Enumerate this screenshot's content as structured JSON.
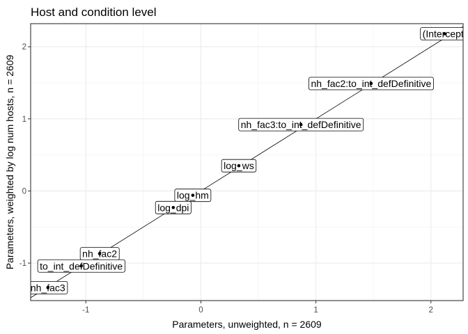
{
  "chart_data": {
    "type": "scatter",
    "title": "Host and condition level",
    "xlabel": "Parameters, unweighted, n =  2609",
    "ylabel": "Parameters, weighted by log num hosts, n =  2609",
    "xlim": [
      -1.48,
      2.28
    ],
    "ylim": [
      -1.52,
      2.32
    ],
    "x_ticks": [
      -1,
      0,
      1,
      2
    ],
    "y_ticks": [
      -1,
      0,
      1,
      2
    ],
    "x_tick_labels": [
      "-1",
      "0",
      "1",
      "2"
    ],
    "y_tick_labels": [
      "-1",
      "0",
      "1",
      "2"
    ],
    "grid": true,
    "reference_line": {
      "type": "identity",
      "slope": 1,
      "intercept": 0
    },
    "points": [
      {
        "label": "(Intercept)",
        "x": 2.12,
        "y": 2.18
      },
      {
        "label": "nh_fac2:to_int_defDefinitive",
        "x": 1.48,
        "y": 1.49
      },
      {
        "label": "nh_fac3:to_int_defDefinitive",
        "x": 0.87,
        "y": 0.92
      },
      {
        "label": "log_ws",
        "x": 0.33,
        "y": 0.35
      },
      {
        "label": "log_hm",
        "x": -0.07,
        "y": -0.06
      },
      {
        "label": "log_dpi",
        "x": -0.24,
        "y": -0.23
      },
      {
        "label": "nh_fac2",
        "x": -0.88,
        "y": -0.87
      },
      {
        "label": "to_int_defDefinitive",
        "x": -1.04,
        "y": -1.04
      },
      {
        "label": "nh_fac3",
        "x": -1.33,
        "y": -1.34
      }
    ]
  }
}
